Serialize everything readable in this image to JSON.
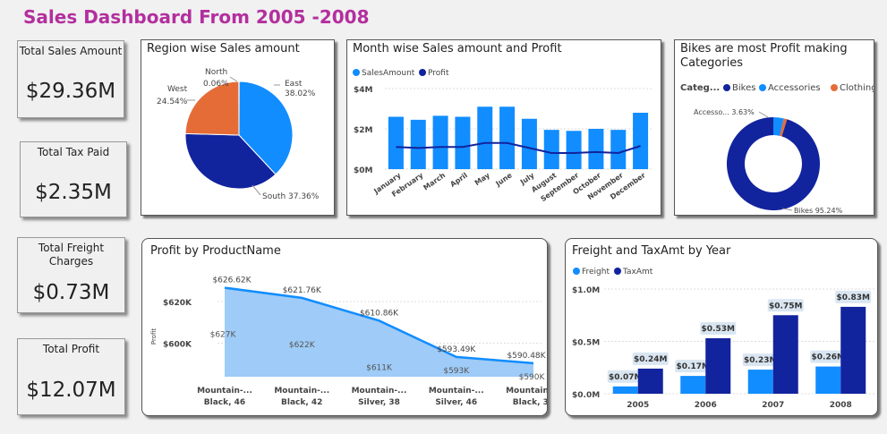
{
  "dashboard": {
    "title": "Sales Dashboard From 2005 -2008"
  },
  "kpis": [
    {
      "label": "Total Sales Amount",
      "value": "$29.36M"
    },
    {
      "label": "Total Tax Paid",
      "value": "$2.35M"
    },
    {
      "label": "Total Freight Charges",
      "value": "$0.73M"
    },
    {
      "label": "Total Profit",
      "value": "$12.07M"
    }
  ],
  "colors": {
    "blue": "#118dff",
    "navy": "#12239e",
    "orange": "#e66c37",
    "light_blue": "#9ecbf7",
    "title": "#b32f9e"
  },
  "chart_data": [
    {
      "type": "pie",
      "title": "Region wise Sales amount",
      "slices": [
        {
          "label": "East",
          "value": 38.02,
          "text": "38.02%",
          "color": "#118dff"
        },
        {
          "label": "South",
          "value": 37.36,
          "text": "South 37.36%",
          "color": "#12239e"
        },
        {
          "label": "West",
          "value": 24.54,
          "text": "24.54%",
          "color": "#e66c37"
        },
        {
          "label": "North",
          "value": 0.06,
          "text": "0.06%",
          "color": "#6b007b"
        }
      ]
    },
    {
      "type": "bar",
      "title": "Month wise Sales amount and Profit",
      "categories": [
        "January",
        "February",
        "March",
        "April",
        "May",
        "June",
        "July",
        "August",
        "September",
        "October",
        "November",
        "December"
      ],
      "series": [
        {
          "name": "SalesAmount",
          "type": "bar",
          "color": "#118dff",
          "values": [
            2.6,
            2.45,
            2.65,
            2.6,
            3.1,
            3.1,
            2.5,
            1.95,
            1.9,
            2.0,
            1.95,
            2.8
          ]
        },
        {
          "name": "Profit",
          "type": "line",
          "color": "#12239e",
          "values": [
            1.1,
            1.05,
            1.1,
            1.1,
            1.3,
            1.3,
            1.05,
            0.8,
            0.8,
            0.85,
            0.8,
            1.15
          ]
        }
      ],
      "y_ticks": [
        "$4M",
        "$2M",
        "$0M"
      ],
      "ylim": [
        0,
        4
      ]
    },
    {
      "type": "pie",
      "title": "Bikes are most Profit making Categories",
      "legend_title": "Categ...",
      "slices": [
        {
          "label": "Bikes",
          "value": 95.24,
          "text": "Bikes 95.24%",
          "color": "#12239e"
        },
        {
          "label": "Accessories",
          "value": 3.63,
          "text": "Accesso... 3.63%",
          "color": "#118dff"
        },
        {
          "label": "Clothing",
          "value": 1.13,
          "text": "",
          "color": "#e66c37"
        }
      ]
    },
    {
      "type": "area",
      "title": "Profit by ProductName",
      "ylabel": "Profit",
      "categories": [
        {
          "line1": "Mountain-...",
          "line2": "Black, 46"
        },
        {
          "line1": "Mountain-...",
          "line2": "Black, 42"
        },
        {
          "line1": "Mountain-...",
          "line2": "Silver, 38"
        },
        {
          "line1": "Mountain-...",
          "line2": "Silver, 46"
        },
        {
          "line1": "Mountain-...",
          "line2": "Black, 38"
        }
      ],
      "values": [
        626.62,
        621.76,
        610.86,
        593.49,
        590.48
      ],
      "labels": [
        "$626.62K",
        "$621.76K",
        "$610.86K",
        "$593.49K",
        "$590.48K"
      ],
      "inner_labels": [
        "$627K",
        "$622K",
        "$611K",
        "$593K",
        "$590K"
      ],
      "y_ticks": [
        "$620K",
        "$600K"
      ],
      "y_tick_values": [
        620,
        600
      ],
      "ylim": [
        584,
        632
      ]
    },
    {
      "type": "bar",
      "title": "Freight and TaxAmt by Year",
      "categories": [
        "2005",
        "2006",
        "2007",
        "2008"
      ],
      "series": [
        {
          "name": "Freight",
          "color": "#118dff",
          "values": [
            0.07,
            0.17,
            0.23,
            0.26
          ],
          "labels": [
            "$0.07M",
            "$0.17M",
            "$0.23M",
            "$0.26M"
          ]
        },
        {
          "name": "TaxAmt",
          "color": "#12239e",
          "values": [
            0.24,
            0.53,
            0.75,
            0.83
          ],
          "labels": [
            "$0.24M",
            "$0.53M",
            "$0.75M",
            "$0.83M"
          ]
        }
      ],
      "y_ticks": [
        "$1.0M",
        "$0.5M",
        "$0.0M"
      ],
      "ylim": [
        0,
        1
      ]
    }
  ]
}
